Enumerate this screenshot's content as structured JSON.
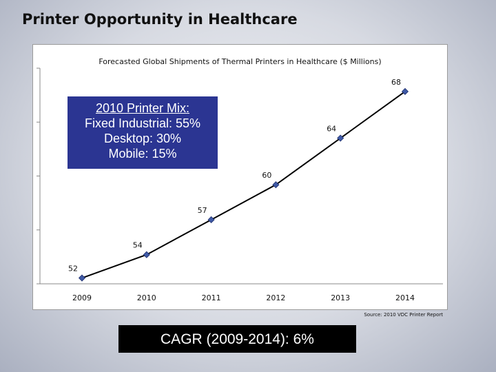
{
  "slide": {
    "title": "Printer Opportunity in Healthcare"
  },
  "callout": {
    "heading": "2010 Printer Mix:",
    "lines": [
      "Fixed Industrial: 55%",
      "Desktop: 30%",
      "Mobile: 15%"
    ],
    "background": "#2b3592"
  },
  "source_note": "Source: 2010 VDC Printer Report",
  "cagr_label": "CAGR (2009-2014): 6%",
  "colors": {
    "line": "#000000",
    "marker": "#3f5aa6",
    "marker_stroke": "#1f2f6e"
  },
  "chart_data": {
    "type": "line",
    "title": "Forecasted Global Shipments of Thermal Printers in Healthcare ($ Millions)",
    "xlabel": "",
    "ylabel": "",
    "categories": [
      "2009",
      "2010",
      "2011",
      "2012",
      "2013",
      "2014"
    ],
    "series": [
      {
        "values": [
          52,
          54,
          57,
          60,
          64,
          68
        ]
      }
    ],
    "data_labels": [
      "52",
      "54",
      "57",
      "60",
      "64",
      "68"
    ],
    "ylim": [
      51.5,
      70
    ],
    "grid": false,
    "legend": "none"
  }
}
